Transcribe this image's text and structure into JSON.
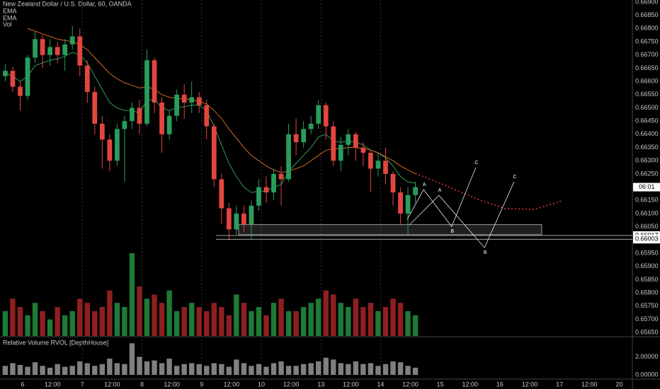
{
  "chart_data": {
    "type": "candlestick",
    "title": "New Zealand Dollar / U.S. Dollar, 60, OANDA",
    "volume_label": "Vol",
    "rvol_title": "Relative Volume RVOL [DepthHouse]",
    "up_color": "#2a9d5c",
    "down_color": "#e2463f",
    "volume_up_color": "#1f7a35",
    "volume_down_color": "#8f1f1f",
    "rvol_color": "#a0a0a0",
    "x": [
      -7,
      -4,
      -1,
      2,
      5,
      8,
      11,
      14,
      17,
      20,
      23,
      26,
      29,
      32,
      35,
      38,
      41,
      44,
      47,
      50,
      53,
      56,
      59,
      62,
      65,
      68,
      71,
      74,
      77,
      80,
      83,
      86,
      89,
      92,
      95,
      98,
      101,
      104,
      107,
      110,
      113,
      116,
      119,
      122,
      125,
      128,
      131,
      134,
      137,
      140,
      143,
      146,
      149,
      152,
      155,
      158
    ],
    "open": [
      0.6662,
      0.6664,
      0.6658,
      0.66545,
      0.6669,
      0.6676,
      0.667,
      0.6673,
      0.667,
      0.6674,
      0.6677,
      0.6666,
      0.6656,
      0.6644,
      0.6638,
      0.663,
      0.6642,
      0.6645,
      0.665,
      0.6644,
      0.6668,
      0.6652,
      0.664,
      0.6647,
      0.6655,
      0.6652,
      0.6654,
      0.6651,
      0.6643,
      0.6623,
      0.6612,
      0.6604,
      0.661,
      0.6606,
      0.6613,
      0.662,
      0.6618,
      0.6625,
      0.6623,
      0.664,
      0.6637,
      0.6642,
      0.6644,
      0.6651,
      0.6643,
      0.663,
      0.6636,
      0.664,
      0.6635,
      0.6633,
      0.6627,
      0.663,
      0.6625,
      0.6618,
      0.661,
      0.6617
    ],
    "high": [
      0.66665,
      0.66655,
      0.666,
      0.667,
      0.6679,
      0.66775,
      0.6676,
      0.6675,
      0.6676,
      0.6681,
      0.668,
      0.6668,
      0.6658,
      0.6647,
      0.664,
      0.6644,
      0.6647,
      0.6652,
      0.6653,
      0.6672,
      0.6669,
      0.6654,
      0.6649,
      0.6657,
      0.6659,
      0.666,
      0.6656,
      0.6653,
      0.6644,
      0.6625,
      0.6614,
      0.6613,
      0.6613,
      0.6615,
      0.6623,
      0.6624,
      0.6627,
      0.6628,
      0.6644,
      0.6646,
      0.6645,
      0.6647,
      0.6653,
      0.6652,
      0.6645,
      0.6639,
      0.6642,
      0.6641,
      0.6637,
      0.6634,
      0.6633,
      0.6635,
      0.6626,
      0.662,
      0.662,
      0.6622
    ],
    "low": [
      0.666,
      0.6656,
      0.6649,
      0.6653,
      0.6667,
      0.6665,
      0.6666,
      0.6667,
      0.6664,
      0.6672,
      0.6662,
      0.6652,
      0.664,
      0.6627,
      0.6626,
      0.6628,
      0.6622,
      0.6642,
      0.664,
      0.6643,
      0.6648,
      0.6633,
      0.6638,
      0.6645,
      0.6646,
      0.6648,
      0.6648,
      0.6638,
      0.662,
      0.6606,
      0.66,
      0.6602,
      0.6603,
      0.66003,
      0.6611,
      0.6614,
      0.6615,
      0.6613,
      0.6622,
      0.6632,
      0.6635,
      0.664,
      0.6642,
      0.6638,
      0.6628,
      0.6626,
      0.6632,
      0.663,
      0.6628,
      0.6618,
      0.6624,
      0.6621,
      0.6613,
      0.6606,
      0.66017,
      0.6614
    ],
    "close": [
      0.6664,
      0.6658,
      0.66545,
      0.6669,
      0.6676,
      0.667,
      0.6673,
      0.667,
      0.6674,
      0.6677,
      0.6666,
      0.6656,
      0.6644,
      0.6638,
      0.663,
      0.6642,
      0.6645,
      0.665,
      0.6644,
      0.6668,
      0.6652,
      0.664,
      0.6647,
      0.6655,
      0.6652,
      0.6654,
      0.6651,
      0.6643,
      0.6623,
      0.6612,
      0.6604,
      0.661,
      0.6606,
      0.6613,
      0.662,
      0.6618,
      0.6625,
      0.6623,
      0.664,
      0.6637,
      0.6642,
      0.6644,
      0.6651,
      0.6643,
      0.663,
      0.6636,
      0.664,
      0.6635,
      0.6633,
      0.6627,
      0.663,
      0.6625,
      0.6618,
      0.661,
      0.6617,
      0.662
    ],
    "volume": [
      30,
      45,
      35,
      25,
      40,
      30,
      20,
      35,
      25,
      30,
      45,
      40,
      30,
      35,
      55,
      40,
      35,
      100,
      60,
      45,
      50,
      40,
      55,
      30,
      35,
      40,
      35,
      30,
      40,
      35,
      25,
      50,
      40,
      30,
      35,
      25,
      40,
      45,
      30,
      30,
      35,
      40,
      45,
      55,
      50,
      40,
      35,
      45,
      35,
      40,
      30,
      35,
      45,
      40,
      30,
      25
    ],
    "rvol": [
      1.0,
      1.3,
      1.1,
      0.9,
      1.4,
      1.0,
      0.8,
      1.2,
      0.9,
      1.0,
      1.5,
      1.3,
      1.0,
      1.2,
      1.8,
      1.3,
      1.2,
      3.5,
      2.0,
      1.5,
      1.6,
      1.3,
      1.8,
      1.0,
      1.2,
      1.3,
      1.2,
      1.0,
      1.3,
      1.2,
      0.9,
      1.7,
      1.3,
      1.0,
      1.2,
      0.9,
      1.3,
      1.5,
      1.0,
      1.0,
      1.2,
      1.3,
      1.5,
      1.9,
      1.7,
      1.3,
      1.2,
      1.5,
      1.2,
      1.3,
      1.0,
      1.2,
      1.5,
      1.4,
      1.0,
      0.8
    ],
    "series": [
      {
        "name": "EMA",
        "color": "#2e9d57",
        "values": [
          0.6663,
          0.6662,
          0.666,
          0.6662,
          0.6666,
          0.6667,
          0.6668,
          0.66685,
          0.66695,
          0.6671,
          0.667,
          0.6667,
          0.6662,
          0.6657,
          0.6652,
          0.665,
          0.6649,
          0.6649,
          0.6648,
          0.6653,
          0.6653,
          0.665,
          0.6649,
          0.665,
          0.66505,
          0.6651,
          0.6651,
          0.6649,
          0.6643,
          0.6636,
          0.6629,
          0.6624,
          0.662,
          0.6618,
          0.66185,
          0.66185,
          0.662,
          0.6621,
          0.6626,
          0.6629,
          0.6632,
          0.6635,
          0.6639,
          0.664,
          0.66375,
          0.6637,
          0.66375,
          0.6637,
          0.6636,
          0.6634,
          0.6633,
          0.6631,
          0.6628,
          0.6624,
          0.6622,
          0.66215
        ]
      },
      {
        "name": "EMA",
        "color": "#d2691e",
        "values": [
          null,
          null,
          null,
          0.668,
          0.6679,
          0.6678,
          0.6677,
          0.6676,
          0.66755,
          0.6675,
          0.6674,
          0.6672,
          0.6669,
          0.6666,
          0.6663,
          0.6661,
          0.66595,
          0.66585,
          0.66575,
          0.6658,
          0.6657,
          0.6655,
          0.6654,
          0.66535,
          0.66535,
          0.6653,
          0.66525,
          0.66515,
          0.6649,
          0.6646,
          0.6642,
          0.66385,
          0.6635,
          0.6632,
          0.663,
          0.6628,
          0.66265,
          0.66255,
          0.6626,
          0.6627,
          0.6628,
          0.663,
          0.6632,
          0.6634,
          0.66345,
          0.66345,
          0.6635,
          0.6635,
          0.66345,
          0.6634,
          0.6633,
          0.66315,
          0.663,
          0.6628,
          0.66265,
          0.6625
        ]
      }
    ],
    "projection": {
      "color": "#e53935",
      "x": [
        158,
        170,
        182,
        194,
        206,
        217
      ],
      "values": [
        0.66252,
        0.66207,
        0.66158,
        0.66119,
        0.66116,
        0.66148
      ]
    },
    "zone": {
      "x": [
        86.9,
        208.8
      ],
      "values": [
        0.6602,
        0.66058
      ]
    },
    "levels": [
      {
        "value": 0.66017,
        "label": "0.66017",
        "x0": 77.8
      },
      {
        "value": 0.66003,
        "label": "0.66003",
        "x0": 77.8
      }
    ],
    "countdown": "06:01",
    "patterns": [
      {
        "x": [
          154.7,
          161.3,
          172.6,
          182.3
        ],
        "values": [
          0.66078,
          0.66191,
          0.66051,
          0.66274
        ],
        "labels": [
          null,
          "A",
          "B",
          "C"
        ]
      },
      {
        "x": [
          155.6,
          167.5,
          185.8,
          197.7
        ],
        "values": [
          0.66057,
          0.66169,
          0.65971,
          0.6622
        ],
        "labels": [
          null,
          "A",
          "B",
          "C"
        ]
      }
    ],
    "xlim": [
      -9.12,
      245.3
    ],
    "xticks": [
      {
        "value": 0,
        "label": "6"
      },
      {
        "value": 12,
        "label": "12:00"
      },
      {
        "value": 24,
        "label": "7"
      },
      {
        "value": 36,
        "label": "12:00"
      },
      {
        "value": 48,
        "label": "8"
      },
      {
        "value": 60,
        "label": "12:00"
      },
      {
        "value": 72,
        "label": "9"
      },
      {
        "value": 84,
        "label": "12:00"
      },
      {
        "value": 96,
        "label": "10"
      },
      {
        "value": 108,
        "label": "12:00"
      },
      {
        "value": 120,
        "label": "13"
      },
      {
        "value": 132,
        "label": "12:00"
      },
      {
        "value": 144,
        "label": "14"
      },
      {
        "value": 156,
        "label": "12:00"
      },
      {
        "value": 168,
        "label": "15"
      },
      {
        "value": 180,
        "label": "12:00"
      },
      {
        "value": 192,
        "label": "16"
      },
      {
        "value": 204,
        "label": "12:00"
      },
      {
        "value": 216,
        "label": "17"
      },
      {
        "value": 228,
        "label": "12:00"
      },
      {
        "value": 240,
        "label": "20"
      }
    ],
    "ylim": [
      0.65637,
      0.66908
    ],
    "yticks": [
      {
        "value": 0.669,
        "label": "0.66900"
      },
      {
        "value": 0.6685,
        "label": "0.66850"
      },
      {
        "value": 0.668,
        "label": "0.66800"
      },
      {
        "value": 0.6675,
        "label": "0.66750"
      },
      {
        "value": 0.667,
        "label": "0.66700"
      },
      {
        "value": 0.6665,
        "label": "0.66650"
      },
      {
        "value": 0.666,
        "label": "0.66600"
      },
      {
        "value": 0.6655,
        "label": "0.66550"
      },
      {
        "value": 0.665,
        "label": "0.66500"
      },
      {
        "value": 0.6645,
        "label": "0.66450"
      },
      {
        "value": 0.664,
        "label": "0.66400"
      },
      {
        "value": 0.6635,
        "label": "0.66350"
      },
      {
        "value": 0.663,
        "label": "0.66300"
      },
      {
        "value": 0.6625,
        "label": "0.66250"
      },
      {
        "value": 0.6615,
        "label": "0.66150"
      },
      {
        "value": 0.661,
        "label": "0.66100"
      },
      {
        "value": 0.6605,
        "label": "0.66050"
      },
      {
        "value": 0.6595,
        "label": "0.65950"
      },
      {
        "value": 0.659,
        "label": "0.65900"
      },
      {
        "value": 0.6585,
        "label": "0.65850"
      },
      {
        "value": 0.658,
        "label": "0.65800"
      },
      {
        "value": 0.6575,
        "label": "0.65750"
      },
      {
        "value": 0.657,
        "label": "0.65700"
      },
      {
        "value": 0.6565,
        "label": "0.65650"
      }
    ],
    "rvol_ylim": [
      -0.46,
      4.15
    ],
    "rvol_yticks": [
      {
        "value": 2,
        "label": "2.00000"
      },
      {
        "value": 0,
        "label": "0.00000"
      }
    ]
  }
}
